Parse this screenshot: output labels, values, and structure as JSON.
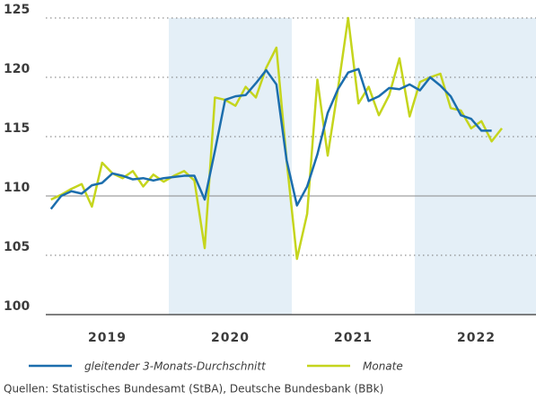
{
  "chart_data": {
    "type": "line",
    "x": [
      2019.042,
      2019.125,
      2019.208,
      2019.292,
      2019.375,
      2019.458,
      2019.542,
      2019.625,
      2019.708,
      2019.792,
      2019.875,
      2019.958,
      2020.042,
      2020.125,
      2020.208,
      2020.292,
      2020.375,
      2020.458,
      2020.542,
      2020.625,
      2020.708,
      2020.792,
      2020.875,
      2020.958,
      2021.042,
      2021.125,
      2021.208,
      2021.292,
      2021.375,
      2021.458,
      2021.542,
      2021.625,
      2021.708,
      2021.792,
      2021.875,
      2021.958,
      2022.042,
      2022.125,
      2022.208,
      2022.292,
      2022.375,
      2022.458,
      2022.542,
      2022.625,
      2022.708
    ],
    "series": [
      {
        "name": "gleitender 3-Monats-Durchschnitt",
        "color": "#1c6ead",
        "values": [
          108.9,
          110.0,
          110.4,
          110.2,
          110.9,
          111.1,
          111.9,
          111.7,
          111.4,
          111.5,
          111.3,
          111.5,
          111.6,
          111.7,
          111.7,
          109.7,
          113.8,
          118.1,
          118.4,
          118.5,
          119.5,
          120.6,
          119.4,
          113.0,
          109.2,
          110.8,
          113.5,
          117.0,
          119.0,
          120.4,
          120.7,
          118.0,
          118.4,
          119.1,
          119.0,
          119.4,
          118.9,
          120.0,
          119.3,
          118.4,
          116.8,
          116.5,
          115.5,
          115.5,
          null
        ]
      },
      {
        "name": "Monate",
        "color": "#c5d51d",
        "values": [
          109.7,
          110.1,
          110.6,
          111.0,
          109.1,
          112.8,
          111.9,
          111.5,
          112.1,
          110.8,
          111.8,
          111.2,
          111.7,
          112.1,
          111.3,
          105.6,
          118.3,
          118.1,
          117.6,
          119.2,
          118.3,
          120.8,
          122.5,
          113.0,
          104.7,
          108.5,
          119.8,
          113.4,
          119.0,
          125.0,
          117.8,
          119.2,
          116.8,
          118.5,
          121.6,
          116.7,
          119.6,
          120.0,
          120.3,
          117.4,
          117.2,
          115.7,
          116.3,
          114.6,
          115.7
        ]
      }
    ],
    "xlim": [
      2019,
      2023
    ],
    "xticks": [
      {
        "value": 2019.5,
        "label": "2019"
      },
      {
        "value": 2020.5,
        "label": "2020"
      },
      {
        "value": 2021.5,
        "label": "2021"
      },
      {
        "value": 2022.5,
        "label": "2022"
      }
    ],
    "shaded": [
      [
        2020,
        2021
      ],
      [
        2022,
        2023
      ]
    ],
    "ylim": [
      100,
      125
    ],
    "yticks": [
      100,
      105,
      110,
      115,
      120,
      125
    ],
    "base_value": 110,
    "grid": true,
    "source": "Quellen: Statistisches Bundesamt (StBA), Deutsche Bundesbank (BBk)"
  }
}
